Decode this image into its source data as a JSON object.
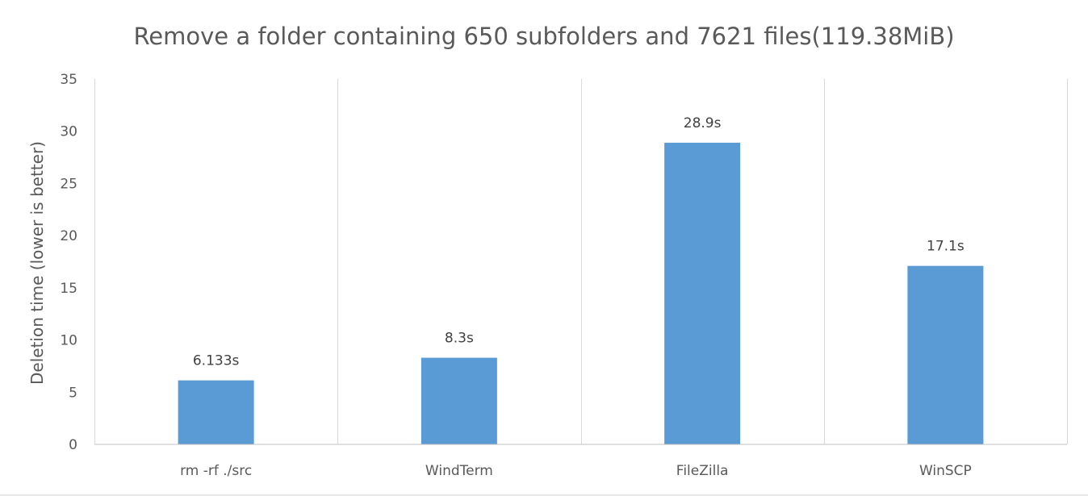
{
  "chart_data": {
    "type": "bar",
    "title": "Remove a folder containing 650 subfolders and 7621 files(119.38MiB)",
    "xlabel": "",
    "ylabel": "Deletion time (lower is better)",
    "categories": [
      "rm -rf ./src",
      "WindTerm",
      "FileZilla",
      "WinSCP"
    ],
    "values": [
      6.133,
      8.3,
      28.9,
      17.1
    ],
    "data_labels": [
      "6.133s",
      "8.3s",
      "28.9s",
      "17.1s"
    ],
    "ylim": [
      0,
      35
    ],
    "yticks": [
      0,
      5,
      10,
      15,
      20,
      25,
      30,
      35
    ],
    "grid": {
      "vertical_separators": true,
      "horizontal": false
    },
    "legend": "none",
    "colors": {
      "bar": "#5b9bd5",
      "axis": "#bfbfbf",
      "grid": "#d9d9d9",
      "text": "#595959",
      "data_label": "#404040"
    }
  }
}
